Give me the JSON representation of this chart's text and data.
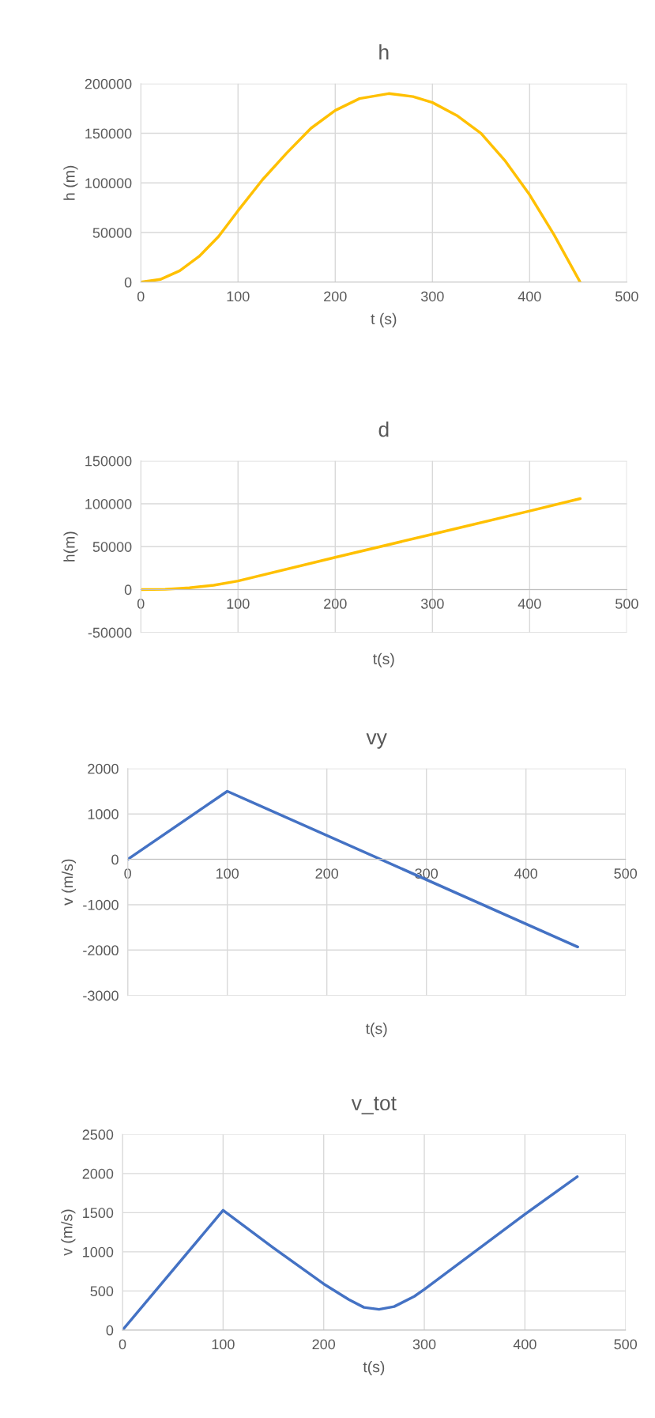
{
  "chart_data": [
    {
      "type": "line",
      "title": "h",
      "xlabel": "t (s)",
      "ylabel": "h (m)",
      "xlim": [
        0,
        500
      ],
      "xticks": [
        0,
        100,
        200,
        300,
        400,
        500
      ],
      "ylim": [
        0,
        200000
      ],
      "yticks": [
        0,
        50000,
        100000,
        150000,
        200000
      ],
      "grid": true,
      "series": [
        {
          "color": "#ffc000",
          "x": [
            0,
            20,
            40,
            60,
            80,
            100,
            125,
            150,
            175,
            200,
            225,
            255,
            280,
            300,
            325,
            350,
            375,
            400,
            425,
            452
          ],
          "values": [
            0,
            2800,
            11500,
            26000,
            46000,
            72000,
            103000,
            130000,
            155000,
            173000,
            185000,
            190000,
            187000,
            181000,
            168000,
            150000,
            122000,
            88000,
            48000,
            0
          ]
        }
      ]
    },
    {
      "type": "line",
      "title": "d",
      "xlabel": "t(s)",
      "ylabel": "h(m)",
      "xlim": [
        0,
        500
      ],
      "xticks": [
        0,
        100,
        200,
        300,
        400,
        500
      ],
      "ylim": [
        -50000,
        150000
      ],
      "yticks": [
        -50000,
        0,
        50000,
        100000,
        150000
      ],
      "grid": true,
      "series": [
        {
          "color": "#ffc000",
          "x": [
            0,
            25,
            50,
            75,
            100,
            200,
            300,
            400,
            452
          ],
          "values": [
            0,
            300,
            2000,
            5000,
            10000,
            37500,
            64500,
            91500,
            106000
          ]
        }
      ]
    },
    {
      "type": "line",
      "title": "vy",
      "xlabel": "t(s)",
      "ylabel": "v (m/s)",
      "xlim": [
        0,
        500
      ],
      "xticks": [
        0,
        100,
        200,
        300,
        400,
        500
      ],
      "ylim": [
        -3000,
        2000
      ],
      "yticks": [
        -3000,
        -2000,
        -1000,
        0,
        1000,
        2000
      ],
      "grid": true,
      "series": [
        {
          "color": "#4472c4",
          "x": [
            0,
            100,
            452
          ],
          "values": [
            0,
            1500,
            -1930
          ]
        }
      ]
    },
    {
      "type": "line",
      "title": "v_tot",
      "xlabel": "t(s)",
      "ylabel": "v (m/s)",
      "xlim": [
        0,
        500
      ],
      "xticks": [
        0,
        100,
        200,
        300,
        400,
        500
      ],
      "ylim": [
        0,
        2500
      ],
      "yticks": [
        0,
        500,
        1000,
        1500,
        2000,
        2500
      ],
      "grid": true,
      "series": [
        {
          "color": "#4472c4",
          "x": [
            0,
            100,
            150,
            200,
            225,
            240,
            255,
            270,
            290,
            300,
            350,
            400,
            452
          ],
          "values": [
            0,
            1530,
            1050,
            590,
            390,
            290,
            265,
            300,
            430,
            520,
            1000,
            1480,
            1960
          ]
        }
      ]
    }
  ]
}
